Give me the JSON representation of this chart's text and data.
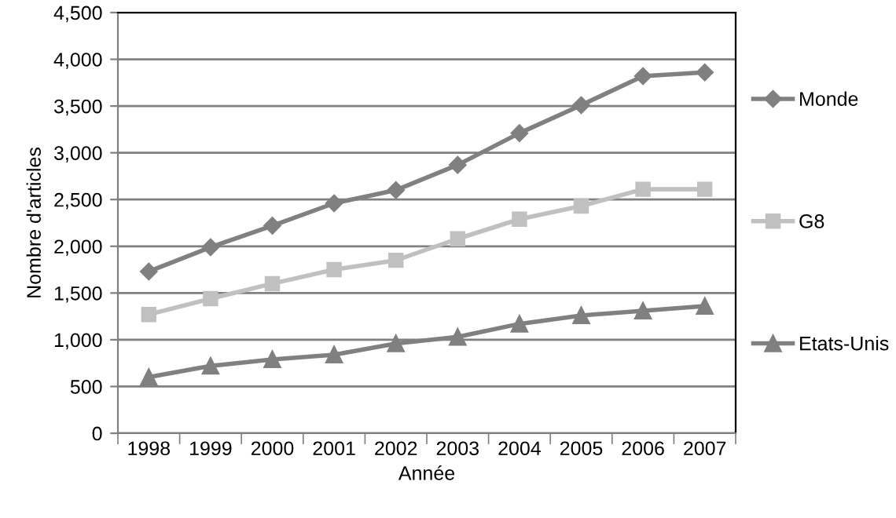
{
  "chart_data": {
    "type": "line",
    "xlabel": "Année",
    "ylabel": "Nombre d'articles",
    "categories": [
      "1998",
      "1999",
      "2000",
      "2001",
      "2002",
      "2003",
      "2004",
      "2005",
      "2006",
      "2007"
    ],
    "series": [
      {
        "name": "Monde",
        "color": "#808080",
        "marker": "diamond",
        "values": [
          1730,
          1990,
          2220,
          2460,
          2600,
          2870,
          3210,
          3510,
          3820,
          3860
        ]
      },
      {
        "name": "G8",
        "color": "#c0c0c0",
        "marker": "square",
        "values": [
          1270,
          1440,
          1600,
          1750,
          1850,
          2080,
          2290,
          2430,
          2610,
          2610
        ]
      },
      {
        "name": "Etats-Unis",
        "color": "#808080",
        "marker": "triangle",
        "values": [
          600,
          720,
          790,
          840,
          960,
          1030,
          1170,
          1260,
          1310,
          1360
        ]
      }
    ],
    "ylim": [
      0,
      4500
    ],
    "yticks": [
      {
        "value": 0,
        "label": "0"
      },
      {
        "value": 500,
        "label": "500"
      },
      {
        "value": 1000,
        "label": "1,000"
      },
      {
        "value": 1500,
        "label": "1,500"
      },
      {
        "value": 2000,
        "label": "2,000"
      },
      {
        "value": 2500,
        "label": "2,500"
      },
      {
        "value": 3000,
        "label": "3,000"
      },
      {
        "value": 3500,
        "label": "3,500"
      },
      {
        "value": 4000,
        "label": "4,000"
      },
      {
        "value": 4500,
        "label": "4,500"
      }
    ],
    "grid": "y",
    "legend": "right",
    "line_style": "solid"
  }
}
